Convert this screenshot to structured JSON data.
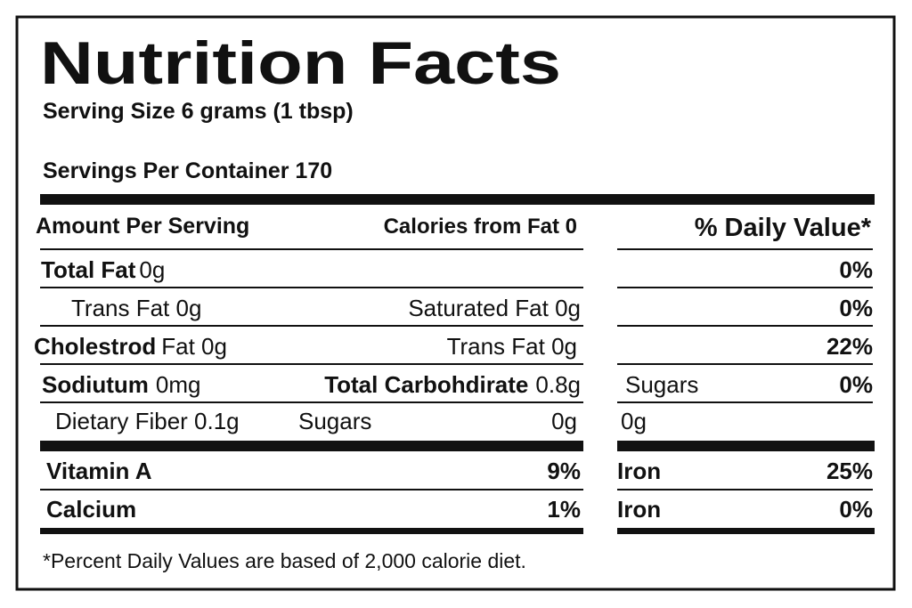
{
  "header": {
    "title": "Nutrition Facts",
    "serving_size": "Serving Size 6 grams (1 tbsp)",
    "servings_per_container": "Servings Per Container 170"
  },
  "table": {
    "header": {
      "amount_per_serving": "Amount Per Serving",
      "calories_from_fat": "Calories from Fat 0",
      "daily_value": "% Daily Value*"
    },
    "rows": [
      {
        "nutrient": "Total Fat",
        "amount": "0g",
        "dv": "0%"
      },
      {
        "nutrient": "Trans Fat 0g",
        "middle": "Saturated Fat 0g",
        "dv": "0%"
      },
      {
        "nutrient": "Cholestrod",
        "amount": "Fat 0g",
        "middle": "Trans Fat 0g",
        "dv": "22%"
      },
      {
        "nutrient": "Sodiutum",
        "amount": "0mg",
        "middle": "Total Carbohdirate",
        "middle_amount": "0.8g",
        "side": "Sugars",
        "dv": "0%"
      },
      {
        "nutrient": "Dietary Fiber 0.1g",
        "middle": "Sugars",
        "middle_amount": "0g",
        "side": "0g"
      }
    ],
    "vitamins": [
      {
        "name": "Vitamin A",
        "dv": "9%",
        "side_name": "Iron",
        "side_dv": "25%"
      },
      {
        "name": "Calcium",
        "dv": "1%",
        "side_name": "Iron",
        "side_dv": "0%"
      }
    ]
  },
  "footnote": "*Percent Daily Values are based of 2,000 calorie diet."
}
